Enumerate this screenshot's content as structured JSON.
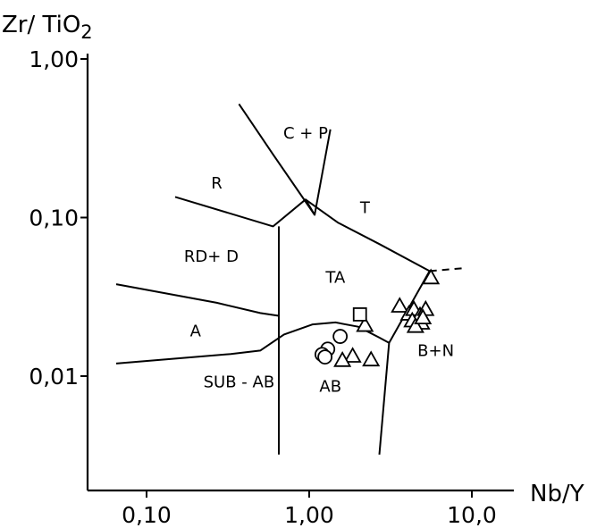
{
  "chart_data": {
    "type": "scatter",
    "title": "",
    "xlabel": "Nb/Y",
    "ylabel_parts": {
      "main": "Zr/ TiO",
      "sub": "2"
    },
    "x_scale": "log",
    "y_scale": "log",
    "x_ticks": [
      {
        "value": 0.1,
        "label": "0,10"
      },
      {
        "value": 1,
        "label": "1,00"
      },
      {
        "value": 10,
        "label": "10,0"
      }
    ],
    "y_ticks": [
      {
        "value": 0.01,
        "label": "0,01"
      },
      {
        "value": 0.1,
        "label": "0,10"
      },
      {
        "value": 1,
        "label": "1,00"
      }
    ],
    "fields": [
      {
        "label": "C + P",
        "x": 0.95,
        "y": 0.34
      },
      {
        "label": "R",
        "x": 0.27,
        "y": 0.165
      },
      {
        "label": "T",
        "x": 2.2,
        "y": 0.115
      },
      {
        "label": "RD+ D",
        "x": 0.25,
        "y": 0.057
      },
      {
        "label": "TA",
        "x": 1.45,
        "y": 0.042
      },
      {
        "label": "A",
        "x": 0.2,
        "y": 0.0193
      },
      {
        "label": "B+N",
        "x": 6.0,
        "y": 0.0145
      },
      {
        "label": "SUB - AB",
        "x": 0.37,
        "y": 0.0092
      },
      {
        "label": "AB",
        "x": 1.35,
        "y": 0.0086
      }
    ],
    "boundaries": [
      [
        [
          0.15,
          0.135
        ],
        [
          0.6,
          0.088
        ],
        [
          0.95,
          0.13
        ],
        [
          1.08,
          0.104
        ],
        [
          1.35,
          0.36
        ]
      ],
      [
        [
          0.37,
          0.52
        ],
        [
          0.6,
          0.25
        ],
        [
          1.08,
          0.104
        ]
      ],
      [
        [
          0.065,
          0.038
        ],
        [
          0.27,
          0.029
        ],
        [
          0.5,
          0.025
        ],
        [
          0.65,
          0.024
        ]
      ],
      [
        [
          0.065,
          0.012
        ],
        [
          0.33,
          0.0138
        ],
        [
          0.5,
          0.0145
        ],
        [
          0.7,
          0.0183
        ],
        [
          1.05,
          0.0212
        ],
        [
          1.45,
          0.0218
        ],
        [
          2.0,
          0.0205
        ],
        [
          2.7,
          0.0175
        ],
        [
          3.1,
          0.0162
        ]
      ],
      [
        [
          0.65,
          0.088
        ],
        [
          0.65,
          0.0032
        ]
      ],
      [
        [
          0.95,
          0.13
        ],
        [
          1.5,
          0.093
        ],
        [
          2.7,
          0.068
        ],
        [
          5.5,
          0.046
        ]
      ],
      [
        [
          5.5,
          0.046
        ],
        [
          3.1,
          0.0162
        ],
        [
          2.7,
          0.0032
        ]
      ]
    ],
    "dashed_boundary": [
      [
        5.5,
        0.046
      ],
      [
        9.0,
        0.048
      ]
    ],
    "series": [
      {
        "marker": "triangle",
        "points": [
          [
            5.6,
            0.0415
          ],
          [
            3.6,
            0.0275
          ],
          [
            4.1,
            0.0245
          ],
          [
            4.4,
            0.0262
          ],
          [
            4.8,
            0.024
          ],
          [
            5.2,
            0.0262
          ],
          [
            4.3,
            0.0222
          ],
          [
            4.9,
            0.0215
          ],
          [
            4.5,
            0.0205
          ],
          [
            5.0,
            0.0232
          ],
          [
            2.2,
            0.0208
          ],
          [
            1.85,
            0.0133
          ],
          [
            1.6,
            0.0125
          ],
          [
            2.4,
            0.0126
          ]
        ]
      },
      {
        "marker": "square",
        "points": [
          [
            2.05,
            0.0245
          ]
        ]
      },
      {
        "marker": "circle",
        "points": [
          [
            1.55,
            0.0178
          ],
          [
            1.3,
            0.0148
          ],
          [
            1.2,
            0.0137
          ],
          [
            1.25,
            0.0132
          ]
        ]
      }
    ]
  }
}
